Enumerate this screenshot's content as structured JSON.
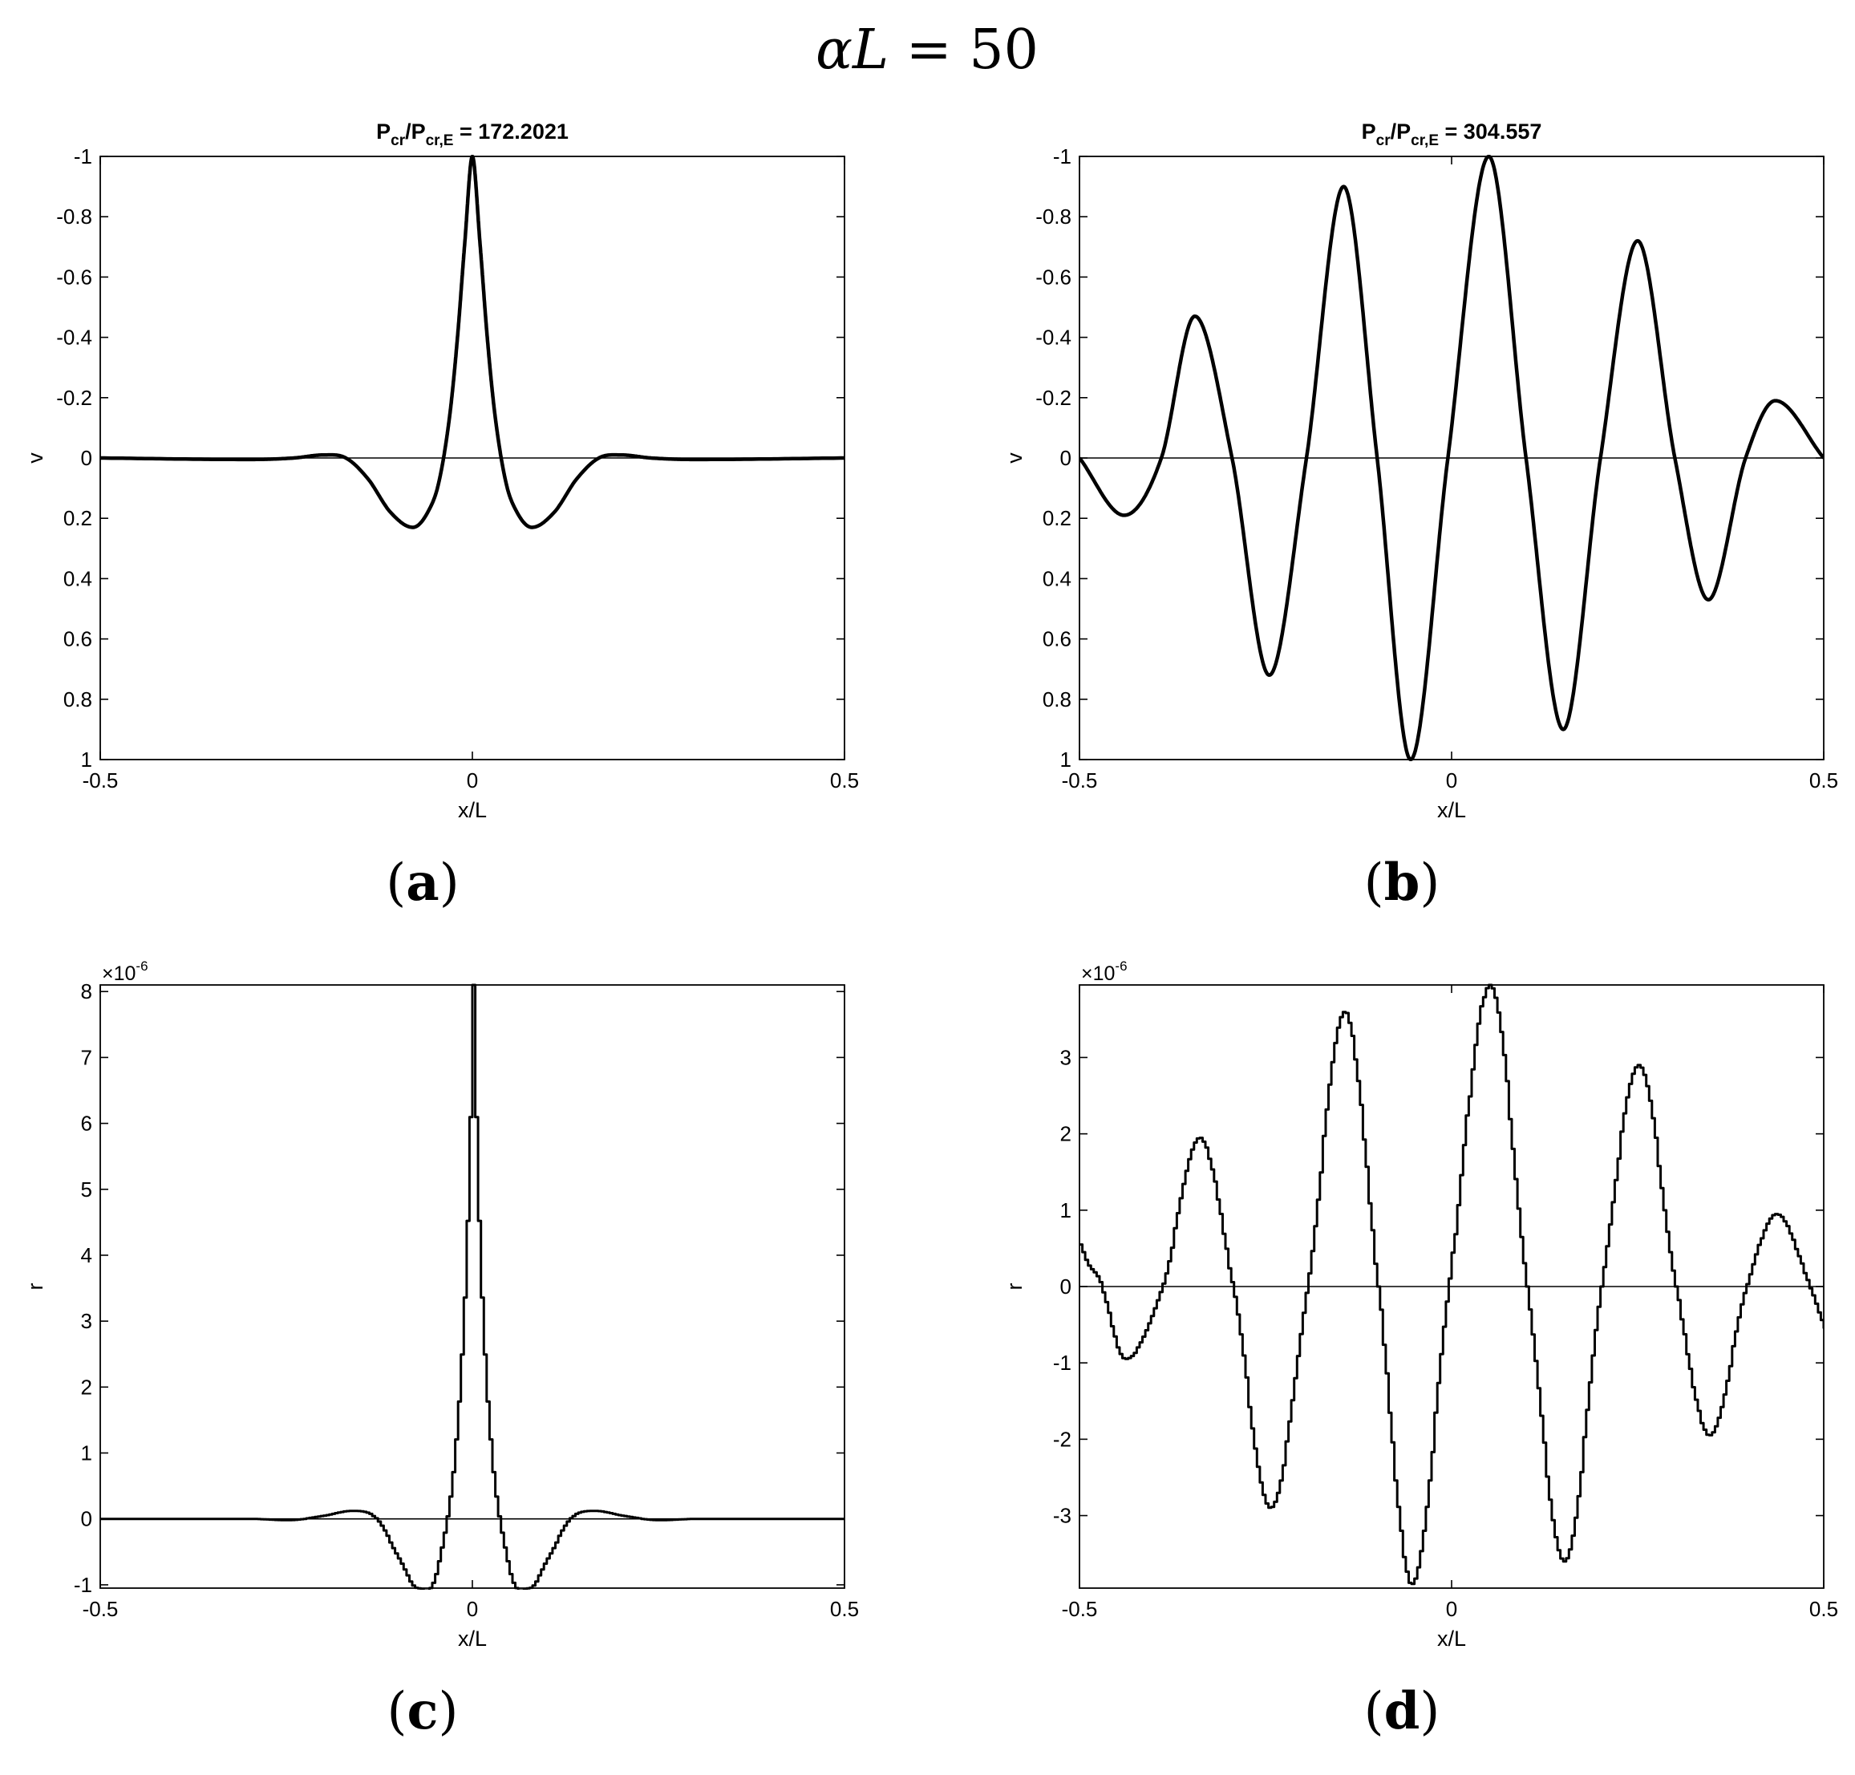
{
  "figure_title": {
    "var": "αL",
    "eq": " = 50"
  },
  "chart_data": [
    {
      "id": "a",
      "panel_label": {
        "open": "(",
        "letter": "a",
        "close": ")"
      },
      "type": "line",
      "title": {
        "p": "P",
        "sub1": "cr",
        "slash": "/P",
        "sub2": "cr,E",
        "value": " = 172.2021"
      },
      "xlabel": "x/L",
      "ylabel": "v",
      "xlim": [
        -0.5,
        0.5
      ],
      "ylim": [
        -1,
        1
      ],
      "y_reversed": true,
      "xticks": [
        -0.5,
        0,
        0.5
      ],
      "xtick_labels": [
        "-0.5",
        "0",
        "0.5"
      ],
      "yticks": [
        -1,
        -0.8,
        -0.6,
        -0.4,
        -0.2,
        0,
        0.2,
        0.4,
        0.6,
        0.8,
        1
      ],
      "ytick_labels": [
        "-1",
        "-0.8",
        "-0.6",
        "-0.4",
        "-0.2",
        "0",
        "0.2",
        "0.4",
        "0.6",
        "0.8",
        "1"
      ],
      "grid": false,
      "zero_line": true,
      "series": [
        {
          "x": [
            -0.5,
            -0.3,
            -0.24,
            -0.2,
            -0.17,
            -0.14,
            -0.11,
            -0.08,
            -0.06,
            -0.045,
            -0.03,
            -0.02,
            -0.01,
            0,
            0.01,
            0.02,
            0.03,
            0.045,
            0.06,
            0.08,
            0.11,
            0.14,
            0.17,
            0.2,
            0.24,
            0.3,
            0.5
          ],
          "y": [
            0,
            0.005,
            0.0,
            -0.01,
            0.0,
            0.07,
            0.18,
            0.23,
            0.18,
            0.08,
            -0.15,
            -0.4,
            -0.72,
            -1,
            -0.72,
            -0.4,
            -0.15,
            0.08,
            0.18,
            0.23,
            0.18,
            0.07,
            0.0,
            -0.01,
            0.0,
            0.005,
            0
          ]
        }
      ]
    },
    {
      "id": "b",
      "panel_label": {
        "open": "(",
        "letter": "b",
        "close": ")"
      },
      "type": "line",
      "title": {
        "p": "P",
        "sub1": "cr",
        "slash": "/P",
        "sub2": "cr,E",
        "value": " = 304.557"
      },
      "xlabel": "x/L",
      "ylabel": "v",
      "xlim": [
        -0.5,
        0.5
      ],
      "ylim": [
        -1,
        1
      ],
      "y_reversed": true,
      "xticks": [
        -0.5,
        0,
        0.5
      ],
      "xtick_labels": [
        "-0.5",
        "0",
        "0.5"
      ],
      "yticks": [
        -1,
        -0.8,
        -0.6,
        -0.4,
        -0.2,
        0,
        0.2,
        0.4,
        0.6,
        0.8,
        1
      ],
      "ytick_labels": [
        "-1",
        "-0.8",
        "-0.6",
        "-0.4",
        "-0.2",
        "0",
        "0.2",
        "0.4",
        "0.6",
        "0.8",
        "1"
      ],
      "grid": false,
      "zero_line": true,
      "series": [
        {
          "x": [
            -0.5,
            -0.44,
            -0.39,
            -0.345,
            -0.295,
            -0.245,
            -0.195,
            -0.145,
            -0.1,
            -0.055,
            -0.005,
            0.05,
            0.1,
            0.15,
            0.2,
            0.25,
            0.3,
            0.345,
            0.395,
            0.435,
            0.5
          ],
          "y": [
            0,
            0.19,
            0,
            -0.47,
            0,
            0.72,
            0,
            -0.9,
            0,
            1.0,
            0,
            -1.0,
            0,
            0.9,
            0,
            -0.72,
            0,
            0.47,
            0,
            -0.19,
            0
          ]
        }
      ]
    },
    {
      "id": "c",
      "panel_label": {
        "open": "(",
        "letter": "c",
        "close": ")"
      },
      "type": "line",
      "multiplier": {
        "base": "×10",
        "exp": "-6"
      },
      "xlabel": "x/L",
      "ylabel": "r",
      "xlim": [
        -0.5,
        0.5
      ],
      "ylim": [
        -1.05,
        8.1
      ],
      "y_reversed": false,
      "xticks": [
        -0.5,
        0,
        0.5
      ],
      "xtick_labels": [
        "-0.5",
        "0",
        "0.5"
      ],
      "yticks": [
        -1,
        0,
        1,
        2,
        3,
        4,
        5,
        6,
        7,
        8
      ],
      "ytick_labels": [
        "-1",
        "0",
        "1",
        "2",
        "3",
        "4",
        "5",
        "6",
        "7",
        "8"
      ],
      "grid": false,
      "zero_line": true,
      "step": true,
      "series": [
        {
          "x": [
            -0.5,
            -0.3,
            -0.25,
            -0.2,
            -0.165,
            -0.13,
            -0.1,
            -0.075,
            -0.055,
            -0.04,
            -0.028,
            -0.018,
            -0.01,
            -0.004,
            0,
            0.004,
            0.01,
            0.018,
            0.028,
            0.04,
            0.055,
            0.075,
            0.1,
            0.13,
            0.165,
            0.2,
            0.25,
            0.3,
            0.5
          ],
          "y": [
            0,
            0,
            -0.02,
            0.05,
            0.12,
            0.0,
            -0.6,
            -1.05,
            -1.0,
            -0.3,
            0.6,
            2.0,
            3.8,
            6.0,
            8.1,
            6.0,
            3.8,
            2.0,
            0.6,
            -0.3,
            -1.0,
            -1.05,
            -0.6,
            0.0,
            0.12,
            0.05,
            -0.02,
            0,
            0
          ]
        }
      ]
    },
    {
      "id": "d",
      "panel_label": {
        "open": "(",
        "letter": "d",
        "close": ")"
      },
      "type": "line",
      "multiplier": {
        "base": "×10",
        "exp": "-6"
      },
      "xlabel": "x/L",
      "ylabel": "r",
      "xlim": [
        -0.5,
        0.5
      ],
      "ylim": [
        -3.95,
        3.95
      ],
      "y_reversed": false,
      "xticks": [
        -0.5,
        0,
        0.5
      ],
      "xtick_labels": [
        "-0.5",
        "0",
        "0.5"
      ],
      "yticks": [
        -3,
        -2,
        -1,
        0,
        1,
        2,
        3
      ],
      "ytick_labels": [
        "-3",
        "-2",
        "-1",
        "0",
        "1",
        "2",
        "3"
      ],
      "grid": false,
      "zero_line": true,
      "step": true,
      "series": [
        {
          "x": [
            -0.5,
            -0.49,
            -0.475,
            -0.44,
            -0.39,
            -0.34,
            -0.295,
            -0.245,
            -0.195,
            -0.145,
            -0.1,
            -0.055,
            -0.005,
            0.05,
            0.1,
            0.15,
            0.2,
            0.25,
            0.3,
            0.345,
            0.395,
            0.435,
            0.48,
            0.5
          ],
          "y": [
            0.55,
            0.3,
            0.1,
            -0.95,
            0,
            1.95,
            0,
            -2.9,
            0,
            3.6,
            0,
            -3.9,
            0,
            3.95,
            0,
            -3.6,
            0,
            2.9,
            0,
            -1.95,
            0,
            0.95,
            0,
            -0.55
          ]
        }
      ]
    }
  ]
}
